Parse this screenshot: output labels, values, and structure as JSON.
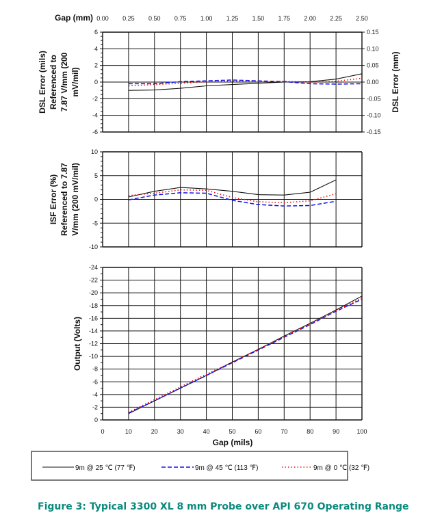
{
  "caption": "Figure 3:  Typical 3300 XL 8 mm Probe over API 670 Operating Range",
  "colors": {
    "s25": "#111111",
    "s45": "#1010ee",
    "s0": "#ee1111",
    "caption": "#0b8a7e"
  },
  "legend": [
    {
      "label": "9m @ 25 ℃ (77 ℉)",
      "style": "solid"
    },
    {
      "label": "9m @ 45 ℃ (113 ℉)",
      "style": "dashed"
    },
    {
      "label": "9m @ 0 ℃ (32 ℉)",
      "style": "dotted"
    }
  ],
  "chart_data": [
    {
      "type": "line",
      "title": "DSL Error",
      "top_xlabel": "Gap (mm)",
      "top_xticks": [
        "0.00",
        "0.25",
        "0.50",
        "0.75",
        "1.00",
        "1.25",
        "1.50",
        "1.75",
        "2.00",
        "2.25",
        "2.50"
      ],
      "ylabel_lines": [
        "DSL Error (mils)",
        "Referenced to",
        "7.87 V/mm (200",
        "mV/mil)"
      ],
      "ylabel_right": "DSL Error (mm)",
      "xlim": [
        0,
        100
      ],
      "ylim": [
        -6,
        6
      ],
      "yticks": [
        "6",
        "4",
        "2",
        "0",
        "-2",
        "-4",
        "-6"
      ],
      "yticks_right": [
        "0.15",
        "0.10",
        "0.05",
        "0.00",
        "-0.05",
        "-0.10",
        "-0.15"
      ],
      "x": [
        10,
        20,
        30,
        40,
        50,
        60,
        70,
        80,
        90,
        100
      ],
      "series": [
        {
          "name": "9m @ 25 ℃ (77 ℉)",
          "values": [
            -1.0,
            -0.95,
            -0.75,
            -0.45,
            -0.3,
            -0.15,
            0.0,
            0.05,
            0.35,
            1.0
          ]
        },
        {
          "name": "9m @ 45 ℃ (113 ℉)",
          "values": [
            -0.2,
            -0.2,
            0.05,
            0.15,
            0.25,
            0.15,
            0.05,
            -0.2,
            -0.25,
            -0.2
          ]
        },
        {
          "name": "9m @ 0 ℃ (32 ℉)",
          "values": [
            -0.45,
            -0.3,
            -0.15,
            0.05,
            0.1,
            0.1,
            0.1,
            0.0,
            0.1,
            0.45
          ]
        }
      ]
    },
    {
      "type": "line",
      "title": "ISF Error",
      "ylabel_lines": [
        "ISF Error (%)",
        "Referenced to 7.87",
        "V/mm (200 mV/mil)"
      ],
      "xlim": [
        0,
        100
      ],
      "ylim": [
        -10,
        10
      ],
      "yticks": [
        "10",
        "5",
        "0",
        "-5",
        "-10"
      ],
      "x": [
        10,
        20,
        30,
        40,
        50,
        60,
        70,
        80,
        90
      ],
      "series": [
        {
          "name": "9m @ 25 ℃ (77 ℉)",
          "values": [
            0.5,
            1.7,
            2.5,
            2.2,
            1.7,
            1.0,
            0.9,
            1.5,
            4.1
          ]
        },
        {
          "name": "9m @ 45 ℃ (113 ℉)",
          "values": [
            -0.1,
            0.9,
            1.4,
            1.3,
            -0.2,
            -1.1,
            -1.4,
            -1.3,
            -0.4
          ]
        },
        {
          "name": "9m @ 0 ℃ (32 ℉)",
          "values": [
            0.8,
            1.3,
            2.0,
            1.9,
            0.4,
            -0.5,
            -0.7,
            -0.3,
            1.2
          ]
        }
      ]
    },
    {
      "type": "line",
      "title": "Output",
      "ylabel_lines": [
        "Output (Volts)"
      ],
      "xlabel": "Gap (mils)",
      "xlim": [
        0,
        100
      ],
      "ylim": [
        0,
        -24
      ],
      "xticks": [
        "0",
        "10",
        "20",
        "30",
        "40",
        "50",
        "60",
        "70",
        "80",
        "90",
        "100"
      ],
      "yticks": [
        "-24",
        "-22",
        "-20",
        "-18",
        "-16",
        "-14",
        "-12",
        "-10",
        "-8",
        "-6",
        "-4",
        "-2",
        "0"
      ],
      "x": [
        10,
        20,
        30,
        40,
        50,
        60,
        70,
        80,
        90,
        100
      ],
      "series": [
        {
          "name": "9m @ 25 ℃ (77 ℉)",
          "values": [
            -1.0,
            -3.0,
            -5.0,
            -7.0,
            -9.1,
            -11.1,
            -13.2,
            -15.2,
            -17.3,
            -19.5
          ]
        },
        {
          "name": "9m @ 45 ℃ (113 ℉)",
          "values": [
            -1.1,
            -3.0,
            -5.0,
            -7.0,
            -9.0,
            -11.0,
            -13.0,
            -15.0,
            -17.1,
            -19.0
          ]
        },
        {
          "name": "9m @ 0 ℃ (32 ℉)",
          "values": [
            -1.2,
            -3.2,
            -5.2,
            -7.2,
            -9.1,
            -11.1,
            -13.1,
            -15.1,
            -17.2,
            -19.2
          ]
        }
      ]
    }
  ]
}
